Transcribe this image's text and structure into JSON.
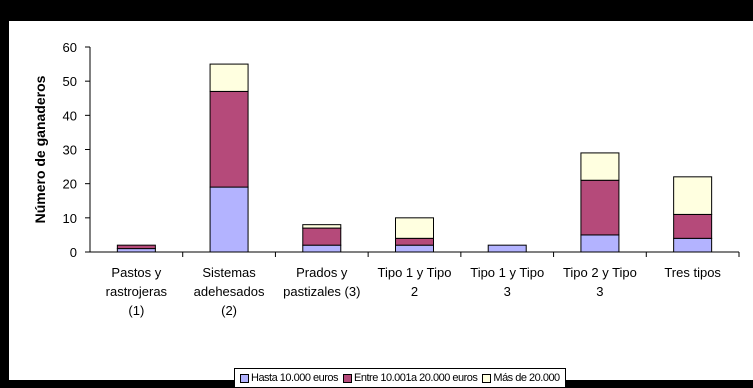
{
  "chart_data": {
    "type": "bar",
    "stacked": true,
    "ylabel": "Número de ganaderos",
    "ylim": [
      0,
      60
    ],
    "yticks": [
      0,
      10,
      20,
      30,
      40,
      50,
      60
    ],
    "grid": false,
    "legend_position": "bottom",
    "categories": [
      [
        "Pastos y",
        "rastrojeras",
        "(1)"
      ],
      [
        "Sistemas",
        "adehesados",
        "(2)"
      ],
      [
        "Prados y",
        "pastizales (3)"
      ],
      [
        "Tipo 1 y Tipo",
        "2"
      ],
      [
        "Tipo 1 y Tipo",
        "3"
      ],
      [
        "Tipo 2 y Tipo",
        "3"
      ],
      [
        "Tres tipos"
      ]
    ],
    "series": [
      {
        "name": "Hasta 10.000 euros",
        "color": "#b3b3ff",
        "values": [
          1,
          19,
          2,
          2,
          2,
          5,
          4
        ]
      },
      {
        "name": "Entre 10.001a 20.000 euros",
        "color": "#b54a7a",
        "values": [
          1,
          28,
          5,
          2,
          0,
          16,
          7
        ]
      },
      {
        "name": "Más de 20.000",
        "color": "#ffffe0",
        "values": [
          0,
          8,
          1,
          6,
          0,
          8,
          11
        ]
      }
    ]
  }
}
